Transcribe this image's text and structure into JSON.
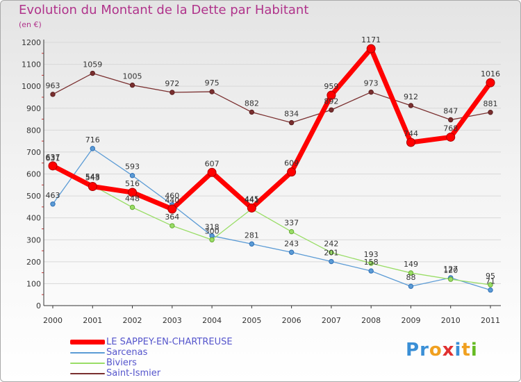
{
  "header": {
    "title": "Evolution du Montant de la Dette par Habitant",
    "subtitle": "(en €)"
  },
  "brand": {
    "letters": [
      "P",
      "r",
      "o",
      "x",
      "i",
      "t",
      "i"
    ],
    "colors": [
      "#3a8fd6",
      "#3a8fd6",
      "#f0a020",
      "#e03030",
      "#3a8fd6",
      "#f0a020",
      "#66bb22"
    ]
  },
  "chart_data": {
    "type": "line",
    "x": [
      "2000",
      "2001",
      "2002",
      "2003",
      "2004",
      "2005",
      "2006",
      "2007",
      "2008",
      "2009",
      "2010",
      "2011"
    ],
    "ylim": [
      0,
      1200
    ],
    "yticks": [
      "0",
      "100",
      "200",
      "300",
      "400",
      "500",
      "600",
      "700",
      "800",
      "900",
      "1000",
      "1100",
      "1200"
    ],
    "grid": "horizontal",
    "legend_position": "bottom-left",
    "series": [
      {
        "name": "LE SAPPEY-EN-CHARTREUSE",
        "color": "#ff0000",
        "values": [
          637,
          543,
          516,
          440,
          607,
          445,
          609,
          959,
          1171,
          744,
          768,
          1016
        ],
        "labels": [
          "637",
          "543",
          "516",
          "440",
          "607",
          "445",
          "609",
          "959",
          "1171",
          "744",
          "768",
          "1016"
        ]
      },
      {
        "name": "Sarcenas",
        "color": "#5b9bd5",
        "values": [
          463,
          716,
          593,
          460,
          318,
          281,
          243,
          201,
          158,
          88,
          127,
          71
        ],
        "labels": [
          "463",
          "716",
          "593",
          "460",
          "318",
          "281",
          "243",
          "201",
          "158",
          "88",
          "127",
          "71"
        ]
      },
      {
        "name": "Biviers",
        "color": "#99dd66",
        "values": [
          631,
          548,
          448,
          364,
          300,
          441,
          337,
          242,
          193,
          149,
          120,
          95
        ],
        "labels": [
          "631",
          "548",
          "448",
          "364",
          "300",
          "441",
          "337",
          "242",
          "193",
          "149",
          "120",
          "95"
        ]
      },
      {
        "name": "Saint-Ismier",
        "color": "#7a2f2f",
        "values": [
          963,
          1059,
          1005,
          972,
          975,
          882,
          834,
          892,
          973,
          912,
          847,
          881
        ],
        "labels": [
          "963",
          "1059",
          "1005",
          "972",
          "975",
          "882",
          "834",
          "892",
          "973",
          "912",
          "847",
          "881"
        ]
      }
    ]
  }
}
